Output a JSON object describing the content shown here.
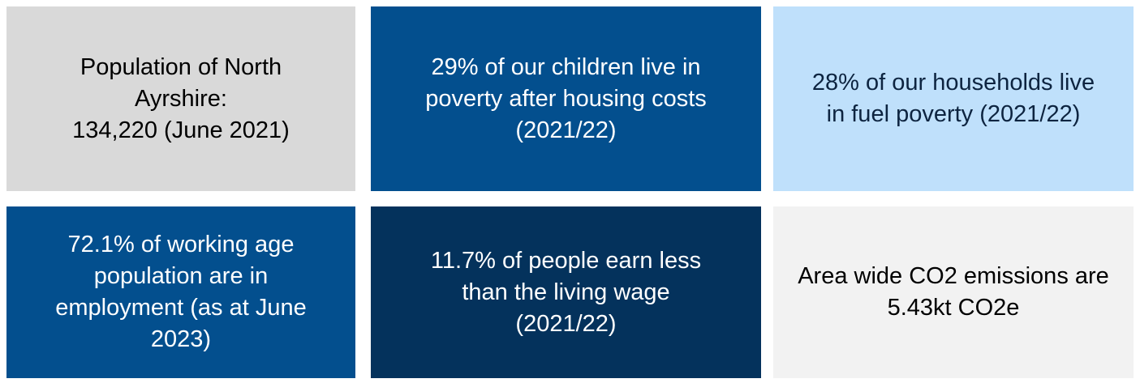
{
  "tiles": [
    {
      "lines": [
        "Population of North",
        "Ayrshire:",
        "134,220 (June 2021)"
      ]
    },
    {
      "lines": [
        "29% of our children live in",
        "poverty after housing costs",
        "(2021/22)"
      ]
    },
    {
      "lines": [
        "28% of our households live",
        "in fuel poverty (2021/22)"
      ]
    },
    {
      "lines": [
        "72.1% of working age",
        "population are in",
        "employment (as at June",
        "2023)"
      ]
    },
    {
      "lines": [
        "11.7% of people earn less",
        "than the living wage",
        "(2021/22)"
      ]
    },
    {
      "lines": [
        "Area wide CO2 emissions are",
        "5.43kt CO2e"
      ]
    }
  ]
}
